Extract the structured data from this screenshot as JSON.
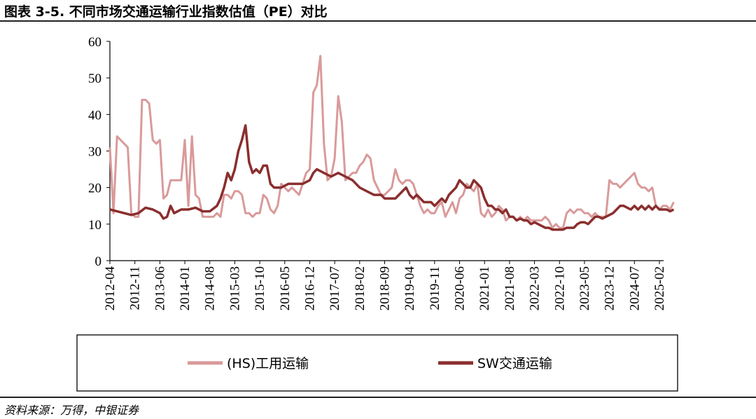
{
  "header": {
    "title": "图表 3-5. 不同市场交通运输行业指数估值（PE）对比"
  },
  "footer": {
    "source": "资料来源：万得，中银证券"
  },
  "colors": {
    "hs": "#d99a9a",
    "sw": "#8b2e2e"
  },
  "chart_data": {
    "type": "line",
    "title": "",
    "xlabel": "",
    "ylabel": "",
    "ylim": [
      0,
      60
    ],
    "yticks": [
      0,
      10,
      20,
      30,
      40,
      50,
      60
    ],
    "xlim": [
      "2012-04",
      "2025-06"
    ],
    "xticks": [
      "2012-04",
      "2012-11",
      "2013-06",
      "2014-01",
      "2014-08",
      "2015-03",
      "2015-10",
      "2016-05",
      "2016-12",
      "2017-07",
      "2018-02",
      "2018-09",
      "2019-04",
      "2019-11",
      "2020-06",
      "2021-01",
      "2021-08",
      "2022-03",
      "2022-10",
      "2023-05",
      "2023-12",
      "2024-07",
      "2025-02"
    ],
    "grid": false,
    "legend": "bottom",
    "series": [
      {
        "name": "(HS)工用运输",
        "points": [
          [
            "2012-04",
            31
          ],
          [
            "2012-05",
            13
          ],
          [
            "2012-06",
            34
          ],
          [
            "2012-07",
            33
          ],
          [
            "2012-08",
            32
          ],
          [
            "2012-09",
            31
          ],
          [
            "2012-10",
            13
          ],
          [
            "2012-11",
            12
          ],
          [
            "2012-12",
            12
          ],
          [
            "2013-01",
            44
          ],
          [
            "2013-02",
            44
          ],
          [
            "2013-03",
            43
          ],
          [
            "2013-04",
            33
          ],
          [
            "2013-05",
            32
          ],
          [
            "2013-06",
            33
          ],
          [
            "2013-07",
            17
          ],
          [
            "2013-08",
            18
          ],
          [
            "2013-09",
            22
          ],
          [
            "2013-10",
            22
          ],
          [
            "2013-11",
            22
          ],
          [
            "2013-12",
            22
          ],
          [
            "2014-01",
            33
          ],
          [
            "2014-02",
            15
          ],
          [
            "2014-03",
            34
          ],
          [
            "2014-04",
            18
          ],
          [
            "2014-05",
            17
          ],
          [
            "2014-06",
            12
          ],
          [
            "2014-07",
            12
          ],
          [
            "2014-08",
            12
          ],
          [
            "2014-09",
            12
          ],
          [
            "2014-10",
            13
          ],
          [
            "2014-11",
            12
          ],
          [
            "2014-12",
            18
          ],
          [
            "2015-01",
            18
          ],
          [
            "2015-02",
            17
          ],
          [
            "2015-03",
            19
          ],
          [
            "2015-04",
            19
          ],
          [
            "2015-05",
            18
          ],
          [
            "2015-06",
            13
          ],
          [
            "2015-07",
            13
          ],
          [
            "2015-08",
            12
          ],
          [
            "2015-09",
            13
          ],
          [
            "2015-10",
            13
          ],
          [
            "2015-11",
            18
          ],
          [
            "2015-12",
            17
          ],
          [
            "2016-01",
            14
          ],
          [
            "2016-02",
            13
          ],
          [
            "2016-03",
            15
          ],
          [
            "2016-04",
            21
          ],
          [
            "2016-05",
            20
          ],
          [
            "2016-06",
            19
          ],
          [
            "2016-07",
            20
          ],
          [
            "2016-08",
            19
          ],
          [
            "2016-09",
            18
          ],
          [
            "2016-10",
            21
          ],
          [
            "2016-11",
            24
          ],
          [
            "2016-12",
            25
          ],
          [
            "2017-01",
            46
          ],
          [
            "2017-02",
            48
          ],
          [
            "2017-03",
            56
          ],
          [
            "2017-04",
            32
          ],
          [
            "2017-05",
            22
          ],
          [
            "2017-06",
            23
          ],
          [
            "2017-07",
            28
          ],
          [
            "2017-08",
            45
          ],
          [
            "2017-09",
            38
          ],
          [
            "2017-10",
            22
          ],
          [
            "2017-11",
            23
          ],
          [
            "2017-12",
            24
          ],
          [
            "2018-01",
            24
          ],
          [
            "2018-02",
            26
          ],
          [
            "2018-03",
            27
          ],
          [
            "2018-04",
            29
          ],
          [
            "2018-05",
            28
          ],
          [
            "2018-06",
            22
          ],
          [
            "2018-07",
            20
          ],
          [
            "2018-08",
            18
          ],
          [
            "2018-09",
            18
          ],
          [
            "2018-10",
            19
          ],
          [
            "2018-11",
            20
          ],
          [
            "2018-12",
            25
          ],
          [
            "2019-01",
            22
          ],
          [
            "2019-02",
            21
          ],
          [
            "2019-03",
            22
          ],
          [
            "2019-04",
            22
          ],
          [
            "2019-05",
            21
          ],
          [
            "2019-06",
            18
          ],
          [
            "2019-07",
            15
          ],
          [
            "2019-08",
            13
          ],
          [
            "2019-09",
            14
          ],
          [
            "2019-10",
            13
          ],
          [
            "2019-11",
            13
          ],
          [
            "2019-12",
            15
          ],
          [
            "2020-01",
            16
          ],
          [
            "2020-02",
            12
          ],
          [
            "2020-03",
            14
          ],
          [
            "2020-04",
            16
          ],
          [
            "2020-05",
            13
          ],
          [
            "2020-06",
            17
          ],
          [
            "2020-07",
            18
          ],
          [
            "2020-08",
            21
          ],
          [
            "2020-09",
            20
          ],
          [
            "2020-10",
            19
          ],
          [
            "2020-11",
            21
          ],
          [
            "2020-12",
            13
          ],
          [
            "2021-01",
            12
          ],
          [
            "2021-02",
            14
          ],
          [
            "2021-03",
            12
          ],
          [
            "2021-04",
            13
          ],
          [
            "2021-05",
            15
          ],
          [
            "2021-06",
            14
          ],
          [
            "2021-07",
            11
          ],
          [
            "2021-08",
            12
          ],
          [
            "2021-09",
            12
          ],
          [
            "2021-10",
            11
          ],
          [
            "2021-11",
            12
          ],
          [
            "2021-12",
            11
          ],
          [
            "2022-01",
            12
          ],
          [
            "2022-02",
            11
          ],
          [
            "2022-03",
            11
          ],
          [
            "2022-04",
            11
          ],
          [
            "2022-05",
            11
          ],
          [
            "2022-06",
            12
          ],
          [
            "2022-07",
            11
          ],
          [
            "2022-08",
            9
          ],
          [
            "2022-09",
            10
          ],
          [
            "2022-10",
            9
          ],
          [
            "2022-11",
            9
          ],
          [
            "2022-12",
            13
          ],
          [
            "2023-01",
            14
          ],
          [
            "2023-02",
            13
          ],
          [
            "2023-03",
            14
          ],
          [
            "2023-04",
            14
          ],
          [
            "2023-05",
            13
          ],
          [
            "2023-06",
            13
          ],
          [
            "2023-07",
            12
          ],
          [
            "2023-08",
            13
          ],
          [
            "2023-09",
            12
          ],
          [
            "2023-10",
            12
          ],
          [
            "2023-11",
            12
          ],
          [
            "2023-12",
            22
          ],
          [
            "2024-01",
            21
          ],
          [
            "2024-02",
            21
          ],
          [
            "2024-03",
            20
          ],
          [
            "2024-04",
            21
          ],
          [
            "2024-05",
            22
          ],
          [
            "2024-06",
            23
          ],
          [
            "2024-07",
            24
          ],
          [
            "2024-08",
            21
          ],
          [
            "2024-09",
            20
          ],
          [
            "2024-10",
            20
          ],
          [
            "2024-11",
            19
          ],
          [
            "2024-12",
            20
          ],
          [
            "2025-01",
            15
          ],
          [
            "2025-02",
            14
          ],
          [
            "2025-03",
            15
          ],
          [
            "2025-04",
            15
          ],
          [
            "2025-05",
            14
          ],
          [
            "2025-06",
            16
          ]
        ]
      },
      {
        "name": "SW交通运输",
        "points": [
          [
            "2012-04",
            14
          ],
          [
            "2012-06",
            13.5
          ],
          [
            "2012-08",
            13
          ],
          [
            "2012-10",
            12.5
          ],
          [
            "2012-12",
            13
          ],
          [
            "2013-02",
            14.5
          ],
          [
            "2013-04",
            14
          ],
          [
            "2013-06",
            13
          ],
          [
            "2013-07",
            11.5
          ],
          [
            "2013-08",
            12
          ],
          [
            "2013-09",
            15
          ],
          [
            "2013-10",
            13
          ],
          [
            "2013-12",
            14
          ],
          [
            "2014-02",
            14
          ],
          [
            "2014-04",
            14.5
          ],
          [
            "2014-06",
            13.5
          ],
          [
            "2014-08",
            13.5
          ],
          [
            "2014-10",
            15
          ],
          [
            "2014-11",
            17
          ],
          [
            "2014-12",
            20
          ],
          [
            "2015-01",
            24
          ],
          [
            "2015-02",
            22
          ],
          [
            "2015-03",
            25
          ],
          [
            "2015-04",
            30
          ],
          [
            "2015-05",
            33
          ],
          [
            "2015-06",
            37
          ],
          [
            "2015-07",
            27
          ],
          [
            "2015-08",
            24
          ],
          [
            "2015-09",
            25
          ],
          [
            "2015-10",
            24
          ],
          [
            "2015-11",
            26
          ],
          [
            "2015-12",
            26
          ],
          [
            "2016-01",
            21
          ],
          [
            "2016-02",
            20
          ],
          [
            "2016-04",
            20
          ],
          [
            "2016-06",
            21
          ],
          [
            "2016-08",
            21
          ],
          [
            "2016-10",
            21
          ],
          [
            "2016-12",
            22
          ],
          [
            "2017-01",
            24
          ],
          [
            "2017-02",
            25
          ],
          [
            "2017-04",
            24
          ],
          [
            "2017-06",
            23
          ],
          [
            "2017-08",
            24
          ],
          [
            "2017-10",
            23
          ],
          [
            "2017-12",
            22
          ],
          [
            "2018-02",
            20
          ],
          [
            "2018-04",
            19
          ],
          [
            "2018-06",
            18
          ],
          [
            "2018-08",
            18
          ],
          [
            "2018-09",
            17
          ],
          [
            "2018-10",
            17
          ],
          [
            "2018-12",
            17
          ],
          [
            "2019-01",
            18
          ],
          [
            "2019-02",
            19
          ],
          [
            "2019-03",
            20
          ],
          [
            "2019-04",
            18
          ],
          [
            "2019-05",
            17
          ],
          [
            "2019-06",
            18
          ],
          [
            "2019-08",
            16
          ],
          [
            "2019-10",
            16
          ],
          [
            "2019-11",
            15
          ],
          [
            "2019-12",
            16
          ],
          [
            "2020-01",
            17
          ],
          [
            "2020-02",
            16
          ],
          [
            "2020-03",
            18
          ],
          [
            "2020-04",
            19
          ],
          [
            "2020-05",
            20
          ],
          [
            "2020-06",
            22
          ],
          [
            "2020-07",
            21
          ],
          [
            "2020-08",
            20
          ],
          [
            "2020-09",
            20
          ],
          [
            "2020-10",
            22
          ],
          [
            "2020-11",
            21
          ],
          [
            "2020-12",
            20
          ],
          [
            "2021-01",
            17
          ],
          [
            "2021-02",
            15
          ],
          [
            "2021-03",
            15
          ],
          [
            "2021-04",
            14
          ],
          [
            "2021-05",
            14
          ],
          [
            "2021-06",
            13
          ],
          [
            "2021-07",
            14
          ],
          [
            "2021-08",
            12
          ],
          [
            "2021-09",
            12
          ],
          [
            "2021-10",
            11
          ],
          [
            "2021-11",
            11.5
          ],
          [
            "2021-12",
            11
          ],
          [
            "2022-01",
            11
          ],
          [
            "2022-02",
            10
          ],
          [
            "2022-03",
            10.5
          ],
          [
            "2022-04",
            10
          ],
          [
            "2022-05",
            9.5
          ],
          [
            "2022-06",
            9
          ],
          [
            "2022-07",
            9
          ],
          [
            "2022-08",
            8.5
          ],
          [
            "2022-09",
            8.5
          ],
          [
            "2022-10",
            8.5
          ],
          [
            "2022-11",
            8.5
          ],
          [
            "2022-12",
            9
          ],
          [
            "2023-01",
            9
          ],
          [
            "2023-02",
            9
          ],
          [
            "2023-03",
            10
          ],
          [
            "2023-04",
            10.5
          ],
          [
            "2023-05",
            10.5
          ],
          [
            "2023-06",
            10
          ],
          [
            "2023-07",
            11
          ],
          [
            "2023-08",
            12
          ],
          [
            "2023-09",
            12
          ],
          [
            "2023-10",
            11.5
          ],
          [
            "2023-11",
            12
          ],
          [
            "2023-12",
            12.5
          ],
          [
            "2024-01",
            13
          ],
          [
            "2024-02",
            14
          ],
          [
            "2024-03",
            15
          ],
          [
            "2024-04",
            15
          ],
          [
            "2024-05",
            14.5
          ],
          [
            "2024-06",
            14
          ],
          [
            "2024-07",
            15
          ],
          [
            "2024-08",
            14
          ],
          [
            "2024-09",
            15
          ],
          [
            "2024-10",
            14
          ],
          [
            "2024-11",
            15
          ],
          [
            "2024-12",
            14
          ],
          [
            "2025-01",
            15
          ],
          [
            "2025-02",
            14
          ],
          [
            "2025-03",
            14
          ],
          [
            "2025-04",
            14
          ],
          [
            "2025-05",
            13.5
          ],
          [
            "2025-06",
            14
          ]
        ]
      }
    ]
  }
}
